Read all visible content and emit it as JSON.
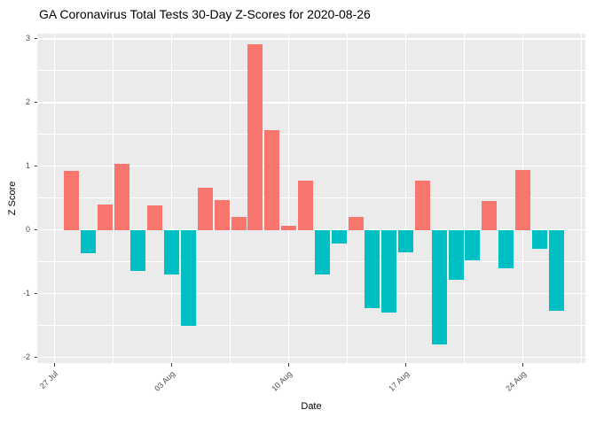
{
  "chart_data": {
    "type": "bar",
    "title": "GA Coronavirus Total Tests 30-Day Z-Scores for 2020-08-26",
    "xlabel": "Date",
    "ylabel": "Z Score",
    "categories": [
      "2020-07-28",
      "2020-07-29",
      "2020-07-30",
      "2020-07-31",
      "2020-08-01",
      "2020-08-02",
      "2020-08-03",
      "2020-08-04",
      "2020-08-05",
      "2020-08-06",
      "2020-08-07",
      "2020-08-08",
      "2020-08-09",
      "2020-08-10",
      "2020-08-11",
      "2020-08-12",
      "2020-08-13",
      "2020-08-14",
      "2020-08-15",
      "2020-08-16",
      "2020-08-17",
      "2020-08-18",
      "2020-08-19",
      "2020-08-20",
      "2020-08-21",
      "2020-08-22",
      "2020-08-23",
      "2020-08-24",
      "2020-08-25",
      "2020-08-26"
    ],
    "values": [
      0.93,
      -0.37,
      0.4,
      1.04,
      -0.64,
      0.38,
      -0.7,
      -1.51,
      0.66,
      0.47,
      0.21,
      2.91,
      1.56,
      0.07,
      0.77,
      -0.7,
      -0.22,
      0.21,
      -1.23,
      -1.3,
      -0.35,
      0.78,
      -1.8,
      -0.78,
      -0.48,
      0.46,
      -0.6,
      0.94,
      -0.3,
      -1.27
    ],
    "ylim": [
      -2.09,
      3.08
    ],
    "xlim_days": [
      -2.04,
      30.74
    ],
    "y_ticks": [
      {
        "label": "3",
        "value": 3
      },
      {
        "label": "2",
        "value": 2
      },
      {
        "label": "1",
        "value": 1
      },
      {
        "label": "0",
        "value": 0
      },
      {
        "label": "-1",
        "value": -1
      },
      {
        "label": "-2",
        "value": -2
      }
    ],
    "y_minor": [
      2.5,
      1.5,
      0.5,
      -0.5,
      -1.5
    ],
    "x_ticks": [
      {
        "label": "27 Jul",
        "day": -1
      },
      {
        "label": "03 Aug",
        "day": 6
      },
      {
        "label": "10 Aug",
        "day": 13
      },
      {
        "label": "17 Aug",
        "day": 20
      },
      {
        "label": "24 Aug",
        "day": 27
      }
    ],
    "x_minor_days": [
      2.5,
      9.5,
      16.5,
      23.5,
      30.5
    ],
    "bar_width_days": 0.9,
    "grid": true,
    "legend": "none",
    "colors": {
      "positive": "#F8766D",
      "negative": "#00BFC4",
      "panel_background": "#EBEBEB",
      "gridline": "#FFFFFF",
      "tick_text": "#4D4D4D",
      "axis_tick": "#333333",
      "title_text": "#000000"
    }
  }
}
